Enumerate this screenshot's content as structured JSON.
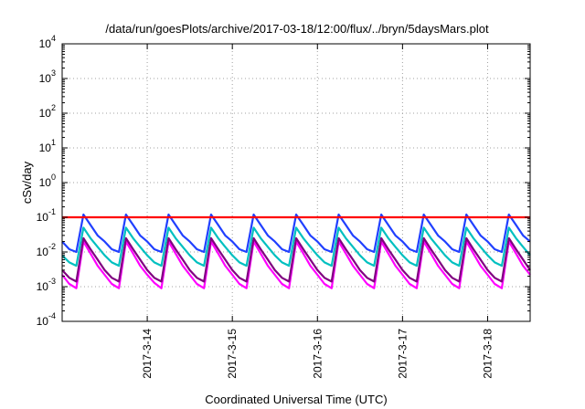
{
  "chart_data": {
    "type": "line",
    "title": "/data/run/goesPlots/archive/2017-03-18/12:00/flux/../bryn/5daysMars.plot",
    "xlabel": "Coordinated Universal Time (UTC)",
    "ylabel": "cSv/day",
    "y_scale": "log",
    "ylim": [
      0.0001,
      10000
    ],
    "y_ticks": [
      {
        "base": "10",
        "exp": "-4"
      },
      {
        "base": "10",
        "exp": "-3"
      },
      {
        "base": "10",
        "exp": "-2"
      },
      {
        "base": "10",
        "exp": "-1"
      },
      {
        "base": "10",
        "exp": "0"
      },
      {
        "base": "10",
        "exp": "1"
      },
      {
        "base": "10",
        "exp": "2"
      },
      {
        "base": "10",
        "exp": "3"
      },
      {
        "base": "10",
        "exp": "4"
      }
    ],
    "x_range": [
      "2017-03-13 00:00",
      "2017-03-18 12:00"
    ],
    "x_ticks": [
      "2017-3-14",
      "2017-3-15",
      "2017-3-16",
      "2017-3-17",
      "2017-3-18"
    ],
    "grid": true,
    "legend": "none",
    "sample_interval_hours": 2,
    "series": [
      {
        "color": "#ff00ff",
        "values": [
          0.0022,
          0.0012,
          0.0009,
          0.02,
          0.009,
          0.004,
          0.0022,
          0.0012,
          0.0009,
          0.02,
          0.009,
          0.004,
          0.0022,
          0.0013,
          0.0009,
          0.02,
          0.009,
          0.004,
          0.0022,
          0.0012,
          0.0009,
          0.02,
          0.009,
          0.004,
          0.0022,
          0.0012,
          0.0009,
          0.02,
          0.009,
          0.004,
          0.0022,
          0.0012,
          0.0009,
          0.02,
          0.009,
          0.004,
          0.0022,
          0.0012,
          0.0009,
          0.02,
          0.009,
          0.004,
          0.0022,
          0.0012,
          0.0009,
          0.02,
          0.009,
          0.004,
          0.0022,
          0.0012,
          0.0009,
          0.02,
          0.009,
          0.004,
          0.0022,
          0.0012,
          0.0009,
          0.02,
          0.009,
          0.004,
          0.0022,
          0.0012,
          0.0009,
          0.02,
          0.009,
          0.004,
          0.0022
        ]
      },
      {
        "color": "#800080",
        "values": [
          0.003,
          0.0018,
          0.0014,
          0.025,
          0.012,
          0.006,
          0.003,
          0.0018,
          0.0014,
          0.025,
          0.012,
          0.006,
          0.003,
          0.0018,
          0.0014,
          0.025,
          0.012,
          0.006,
          0.003,
          0.0018,
          0.0014,
          0.025,
          0.012,
          0.006,
          0.003,
          0.0018,
          0.0014,
          0.025,
          0.012,
          0.006,
          0.003,
          0.0018,
          0.0014,
          0.025,
          0.012,
          0.006,
          0.003,
          0.0018,
          0.0014,
          0.025,
          0.012,
          0.006,
          0.003,
          0.0018,
          0.0014,
          0.025,
          0.012,
          0.006,
          0.003,
          0.0018,
          0.0014,
          0.025,
          0.012,
          0.006,
          0.003,
          0.0018,
          0.0014,
          0.025,
          0.012,
          0.006,
          0.003,
          0.0018,
          0.0014,
          0.025,
          0.012,
          0.006,
          0.003
        ]
      },
      {
        "color": "#00c0c0",
        "values": [
          0.008,
          0.005,
          0.004,
          0.05,
          0.025,
          0.014,
          0.008,
          0.005,
          0.004,
          0.05,
          0.025,
          0.014,
          0.008,
          0.005,
          0.004,
          0.05,
          0.025,
          0.014,
          0.008,
          0.005,
          0.004,
          0.05,
          0.025,
          0.014,
          0.008,
          0.005,
          0.004,
          0.05,
          0.025,
          0.014,
          0.008,
          0.005,
          0.004,
          0.05,
          0.025,
          0.014,
          0.008,
          0.005,
          0.004,
          0.05,
          0.025,
          0.014,
          0.008,
          0.005,
          0.004,
          0.05,
          0.025,
          0.014,
          0.008,
          0.005,
          0.004,
          0.05,
          0.025,
          0.014,
          0.008,
          0.005,
          0.004,
          0.05,
          0.025,
          0.014,
          0.008,
          0.005,
          0.004,
          0.05,
          0.025,
          0.014,
          0.008
        ]
      },
      {
        "color": "#2040ff",
        "values": [
          0.02,
          0.012,
          0.01,
          0.12,
          0.06,
          0.03,
          0.02,
          0.012,
          0.01,
          0.12,
          0.06,
          0.03,
          0.02,
          0.012,
          0.01,
          0.12,
          0.06,
          0.03,
          0.02,
          0.012,
          0.01,
          0.12,
          0.06,
          0.03,
          0.02,
          0.012,
          0.01,
          0.12,
          0.06,
          0.03,
          0.02,
          0.012,
          0.01,
          0.12,
          0.06,
          0.03,
          0.02,
          0.012,
          0.01,
          0.12,
          0.06,
          0.03,
          0.02,
          0.012,
          0.01,
          0.12,
          0.06,
          0.03,
          0.02,
          0.012,
          0.01,
          0.12,
          0.06,
          0.03,
          0.02,
          0.012,
          0.01,
          0.12,
          0.06,
          0.03,
          0.02,
          0.012,
          0.01,
          0.12,
          0.06,
          0.03,
          0.02
        ]
      },
      {
        "color": "#ff0000",
        "values": [
          0.1,
          0.1,
          0.1,
          0.1,
          0.1,
          0.1,
          0.1,
          0.1,
          0.1,
          0.1,
          0.1,
          0.1,
          0.1,
          0.1,
          0.1,
          0.1,
          0.1,
          0.1,
          0.1,
          0.1,
          0.1,
          0.1,
          0.1,
          0.1,
          0.1,
          0.1,
          0.1,
          0.1,
          0.1,
          0.1,
          0.1,
          0.1,
          0.1,
          0.1,
          0.1,
          0.1,
          0.1,
          0.1,
          0.1,
          0.1,
          0.1,
          0.1,
          0.1,
          0.1,
          0.1,
          0.1,
          0.1,
          0.1,
          0.1,
          0.1,
          0.1,
          0.1,
          0.1,
          0.1,
          0.1,
          0.1,
          0.1,
          0.1,
          0.1,
          0.1,
          0.1,
          0.1,
          0.1,
          0.1,
          0.1,
          0.1,
          0.1
        ]
      }
    ]
  }
}
